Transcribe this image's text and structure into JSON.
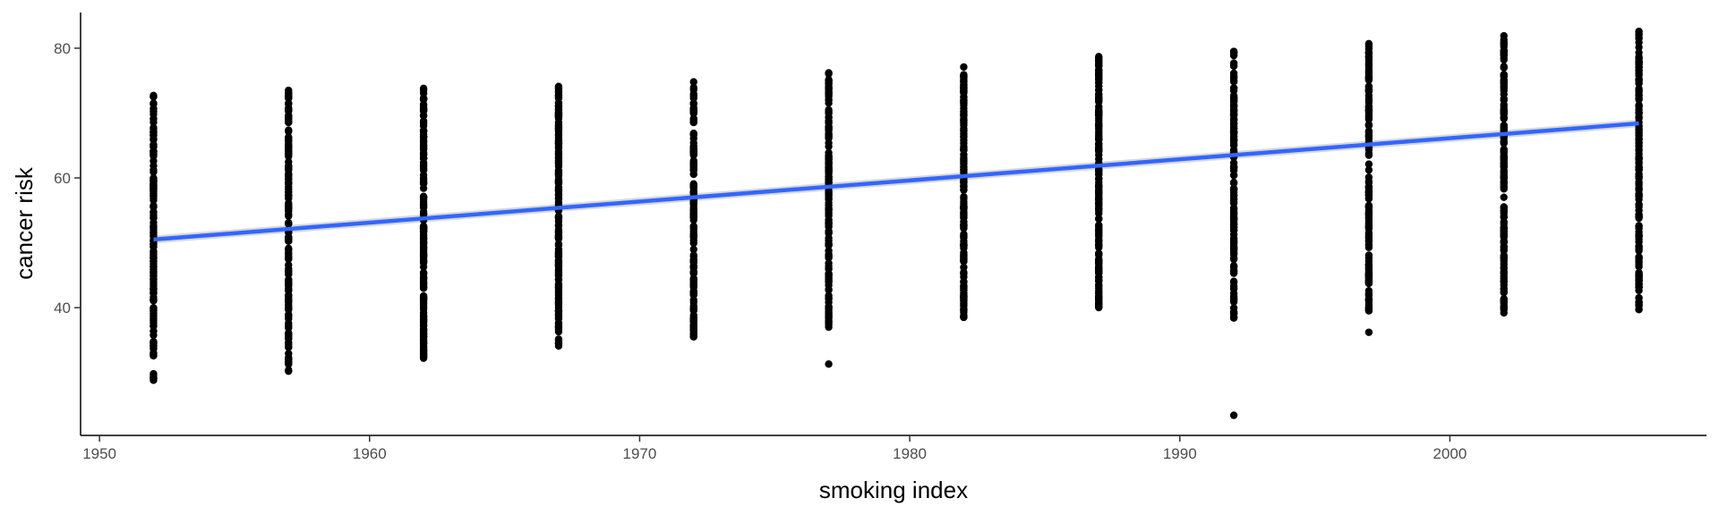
{
  "chart_data": {
    "type": "scatter",
    "title": "",
    "xlabel": "smoking index",
    "ylabel": "cancer risk",
    "xlim": [
      1949.3,
      2009.5
    ],
    "ylim": [
      20.3,
      85.5
    ],
    "x_ticks": [
      1950,
      1960,
      1970,
      1980,
      1990,
      2000
    ],
    "y_ticks": [
      40,
      60,
      80
    ],
    "grid": false,
    "legend": "none",
    "point_color": "#000000",
    "columns": [
      {
        "x": 1952,
        "y_min": 28.8,
        "y_max": 72.7,
        "n": 170
      },
      {
        "x": 1957,
        "y_min": 30.2,
        "y_max": 73.5,
        "n": 170
      },
      {
        "x": 1962,
        "y_min": 32.2,
        "y_max": 73.8,
        "n": 170
      },
      {
        "x": 1967,
        "y_min": 34.1,
        "y_max": 74.1,
        "n": 170
      },
      {
        "x": 1972,
        "y_min": 35.5,
        "y_max": 74.8,
        "n": 170
      },
      {
        "x": 1977,
        "y_min": 37.0,
        "y_max": 76.2,
        "n": 170
      },
      {
        "x": 1982,
        "y_min": 38.5,
        "y_max": 77.1,
        "n": 170
      },
      {
        "x": 1987,
        "y_min": 40.0,
        "y_max": 78.7,
        "n": 170
      },
      {
        "x": 1992,
        "y_min": 38.4,
        "y_max": 79.5,
        "n": 170
      },
      {
        "x": 1997,
        "y_min": 39.5,
        "y_max": 80.7,
        "n": 170
      },
      {
        "x": 2002,
        "y_min": 39.2,
        "y_max": 81.9,
        "n": 170
      },
      {
        "x": 2007,
        "y_min": 39.7,
        "y_max": 82.6,
        "n": 170
      }
    ],
    "outliers": [
      {
        "x": 1977,
        "y": 31.3
      },
      {
        "x": 1992,
        "y": 23.4
      },
      {
        "x": 1997,
        "y": 36.2
      }
    ],
    "smooth": {
      "method": "linear",
      "x": [
        1952,
        2007
      ],
      "y": [
        50.5,
        68.4
      ],
      "se": 0.6,
      "color": "#3366FF",
      "band_color": "#c7c7c7"
    }
  }
}
